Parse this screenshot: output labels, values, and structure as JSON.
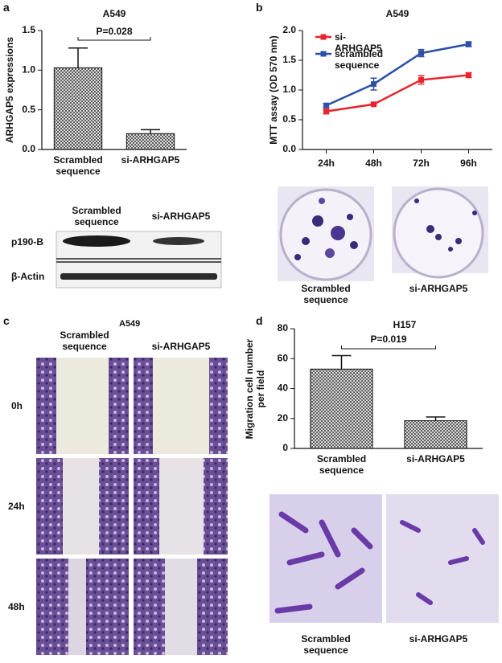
{
  "chart_data": [
    {
      "type": "bar",
      "title": "A549",
      "annotation": "P=0.028",
      "y_label": "ARHGAP5 expressions",
      "categories": [
        "Scrambled sequence",
        "si-ARHGAP5"
      ],
      "values": [
        1.03,
        0.2
      ],
      "errors": [
        0.25,
        0.05
      ],
      "color": "#444444",
      "ylim": [
        0,
        1.5
      ],
      "yticks": [
        {
          "value": 0,
          "label": "0.0"
        },
        0.5,
        {
          "value": 1,
          "label": "1.0"
        },
        1.5
      ]
    },
    {
      "type": "line",
      "title": "A549",
      "y_label": "MTT assay (OD 570 nm)",
      "categories": [
        "24h",
        "48h",
        "72h",
        "96h"
      ],
      "legend": "upper left",
      "series": [
        {
          "name": "si-ARHGAP5",
          "color": "#e8232b",
          "values": [
            0.64,
            0.76,
            1.17,
            1.25
          ],
          "errors": [
            0.04,
            0.02,
            0.07,
            0.04
          ]
        },
        {
          "name": "scrambled sequence",
          "color": "#2e4fa8",
          "values": [
            0.74,
            1.1,
            1.62,
            1.77
          ],
          "errors": [
            0.03,
            0.1,
            0.06,
            0.04
          ]
        }
      ],
      "ylim": [
        0,
        2
      ],
      "yticks": [
        {
          "value": 0,
          "label": "0.0"
        },
        0.5,
        {
          "value": 1,
          "label": "1.0"
        },
        1.5,
        {
          "value": 2,
          "label": "2.0"
        }
      ]
    },
    {
      "type": "bar",
      "title": "H157",
      "annotation": "P=0.019",
      "y_label": "Migration cell number per field",
      "categories": [
        "Scrambled sequence",
        "si-ARHGAP5"
      ],
      "values": [
        53,
        18.5
      ],
      "errors": [
        9,
        2.5
      ],
      "color": "#444444",
      "ylim": [
        0,
        80
      ],
      "yticks": [
        0,
        20,
        40,
        60,
        80
      ]
    }
  ],
  "figure": {
    "panel_labels": [
      "a",
      "b",
      "c",
      "d"
    ],
    "western_blot": {
      "columns": [
        "Scrambled sequence",
        "si-ARHGAP5"
      ],
      "rows": [
        "p190-B",
        "β-Actin"
      ]
    },
    "colony_images": {
      "captions": [
        "Scrambled sequence",
        "si-ARHGAP5"
      ]
    },
    "wound_healing": {
      "title": "A549",
      "columns": [
        "Scrambled sequence",
        "si-ARHGAP5"
      ],
      "rows": [
        "0h",
        "24h",
        "48h"
      ]
    },
    "migration_images": {
      "captions": [
        "Scrambled sequence",
        "si-ARHGAP5"
      ]
    }
  }
}
